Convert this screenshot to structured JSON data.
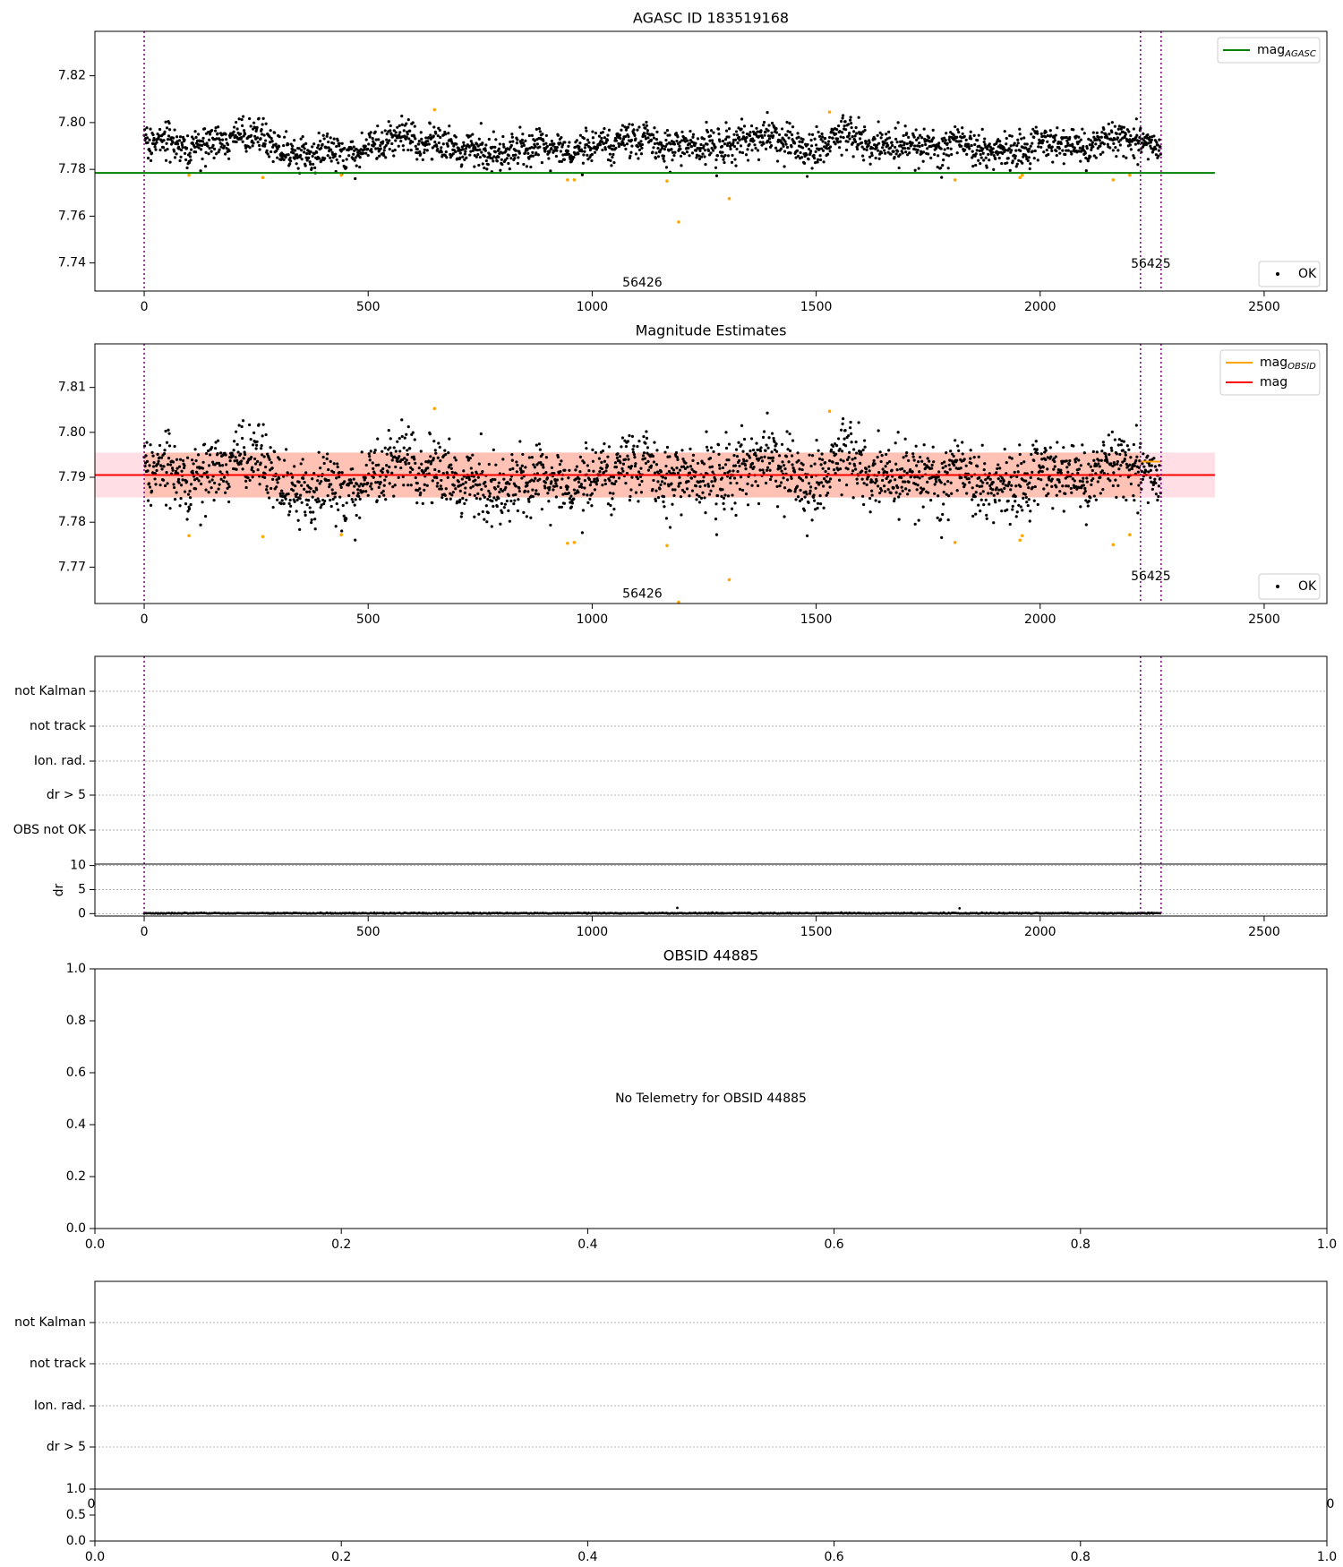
{
  "colors": {
    "points_ok": "#000000",
    "points_flagged": "#ffa500",
    "obs_boundary": "#800080",
    "mag_agasc": "#008000",
    "mag_obsid": "#ffa500",
    "mag_mean": "#ff0000",
    "band_red": "#ffc0cb",
    "band_orange": "#ffa07a",
    "grid": "#b0b0b0"
  },
  "chart_data": [
    {
      "type": "scatter",
      "title": "AGASC ID 183519168",
      "xlim": [
        -110,
        2640
      ],
      "ylim": [
        7.728,
        7.839
      ],
      "xticks": [
        "0",
        "500",
        "1000",
        "1500",
        "2000",
        "2500"
      ],
      "yticks": [
        "7.74",
        "7.76",
        "7.78",
        "7.80",
        "7.82"
      ],
      "ytick_values": [
        7.74,
        7.76,
        7.78,
        7.8,
        7.82
      ],
      "legend_upper": [
        {
          "label": "mag",
          "sub": "AGASC",
          "style": "line",
          "color": "#008000"
        }
      ],
      "legend_lower": [
        {
          "label": "OK",
          "style": "dot",
          "color": "#000000"
        }
      ],
      "reference_line": {
        "name": "mag_AGASC",
        "y": 7.7785,
        "x_range": [
          -110,
          2390
        ]
      },
      "boundaries": [
        0,
        2224,
        2270
      ],
      "annotations": [
        {
          "text": "56426",
          "x": 1112,
          "y": 7.7315
        },
        {
          "text": "56425",
          "x": 2247,
          "y": 7.7395
        }
      ],
      "points": {
        "n": 2270,
        "center": 7.7905,
        "noise": 0.0045,
        "seed": 7
      },
      "flagged": [
        [
          100,
          7.7775
        ],
        [
          265,
          7.7765
        ],
        [
          440,
          7.7775
        ],
        [
          648,
          7.8055
        ],
        [
          945,
          7.7755
        ],
        [
          960,
          7.7755
        ],
        [
          1167,
          7.775
        ],
        [
          1193,
          7.7575
        ],
        [
          1306,
          7.7675
        ],
        [
          1530,
          7.8045
        ],
        [
          1810,
          7.7755
        ],
        [
          1955,
          7.7765
        ],
        [
          1960,
          7.7775
        ],
        [
          2163,
          7.7755
        ],
        [
          2200,
          7.7775
        ]
      ],
      "grid": false
    },
    {
      "type": "scatter",
      "title": "Magnitude Estimates",
      "xlim": [
        -110,
        2640
      ],
      "ylim": [
        7.7619,
        7.8197
      ],
      "xticks": [
        "0",
        "500",
        "1000",
        "1500",
        "2000",
        "2500"
      ],
      "yticks": [
        "7.77",
        "7.78",
        "7.79",
        "7.80",
        "7.81"
      ],
      "ytick_values": [
        7.77,
        7.78,
        7.79,
        7.8,
        7.81
      ],
      "legend_upper": [
        {
          "label": "mag",
          "sub": "OBSID",
          "style": "line",
          "color": "#ffa500"
        },
        {
          "label": "mag",
          "sub": "",
          "style": "line",
          "color": "#ff0000"
        }
      ],
      "legend_lower": [
        {
          "label": "OK",
          "style": "dot",
          "color": "#000000"
        }
      ],
      "mean_line": {
        "y": 7.7905,
        "x_range": [
          -110,
          2390
        ]
      },
      "band_red": {
        "y": [
          7.7855,
          7.7955
        ],
        "x_range": [
          -110,
          2390
        ]
      },
      "band_orange": {
        "y": [
          7.7855,
          7.7955
        ],
        "x_range": [
          0,
          2224
        ]
      },
      "obsid_segments": [
        {
          "x": [
            0,
            2224
          ],
          "y": 7.7905
        },
        {
          "x": [
            2224,
            2270
          ],
          "y": 7.7935
        }
      ],
      "boundaries": [
        0,
        2224,
        2270
      ],
      "annotations": [
        {
          "text": "56426",
          "x": 1112,
          "y": 7.764
        },
        {
          "text": "56425",
          "x": 2247,
          "y": 7.7679
        }
      ],
      "points": {
        "n": 2270,
        "center": 7.7905,
        "noise": 0.0045,
        "seed": 7
      },
      "flagged": [
        [
          100,
          7.777
        ],
        [
          265,
          7.7768
        ],
        [
          440,
          7.7772
        ],
        [
          648,
          7.8053
        ],
        [
          945,
          7.7753
        ],
        [
          960,
          7.7755
        ],
        [
          1167,
          7.7748
        ],
        [
          1193,
          7.7622
        ],
        [
          1306,
          7.7672
        ],
        [
          1530,
          7.8047
        ],
        [
          1810,
          7.7755
        ],
        [
          1955,
          7.776
        ],
        [
          1960,
          7.777
        ],
        [
          2163,
          7.775
        ],
        [
          2200,
          7.7772
        ]
      ],
      "grid": false
    },
    {
      "type": "scatter",
      "title": "",
      "xlim": [
        -110,
        2640
      ],
      "xticks": [
        "0",
        "500",
        "1000",
        "1500",
        "2000",
        "2500"
      ],
      "category_labels": [
        "not Kalman",
        "not track",
        "Ion. rad.",
        "dr > 5",
        "OBS not OK"
      ],
      "dr_yticks": [
        "10",
        "5",
        "0"
      ],
      "dr_ylabel": "dr",
      "dr_ylim": [
        -0.5,
        10.3
      ],
      "boundaries": [
        0,
        2224,
        2270
      ],
      "dr_points": {
        "n": 2270,
        "center": 0.08,
        "noise": 0.05,
        "seed": 3
      },
      "grid": true
    },
    {
      "type": "scatter",
      "title": "OBSID 44885",
      "xlim": [
        0,
        1
      ],
      "ylim": [
        0,
        1
      ],
      "xticks": [
        "0.0",
        "0.2",
        "0.4",
        "0.6",
        "0.8",
        "1.0"
      ],
      "yticks": [
        "0.0",
        "0.2",
        "0.4",
        "0.6",
        "0.8",
        "1.0"
      ],
      "message": "No Telemetry for OBSID 44885",
      "grid": false
    },
    {
      "type": "scatter",
      "title": "",
      "xlim": [
        0,
        1
      ],
      "category_labels": [
        "not Kalman",
        "not track",
        "Ion. rad.",
        "dr > 5"
      ],
      "obscured_ticks": [
        "0",
        "0"
      ],
      "lower_yticks": [
        "1.0",
        "0.5",
        "0.0"
      ],
      "xticks": [
        "0.0",
        "0.2",
        "0.4",
        "0.6",
        "0.8",
        "1.0"
      ],
      "grid": true
    }
  ]
}
